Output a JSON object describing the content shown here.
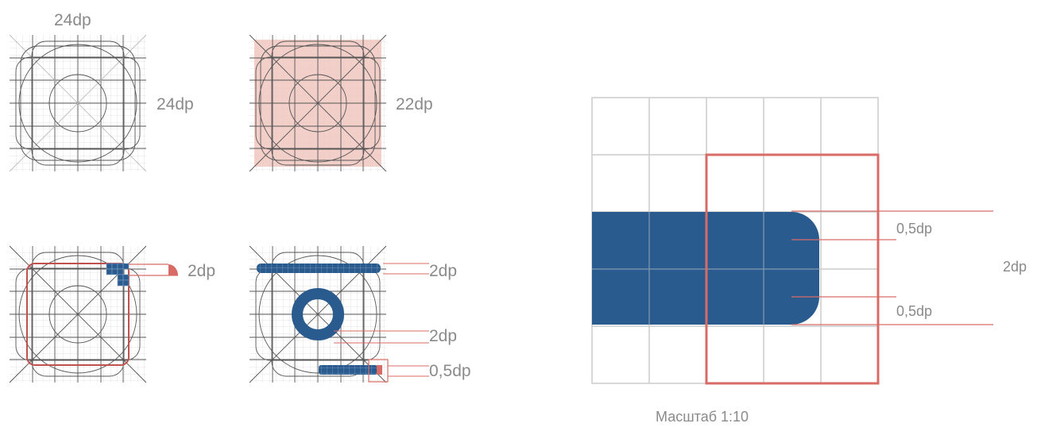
{
  "colors": {
    "accent_red": "#d96b66",
    "keyline_red": "#c0504d",
    "pink_fill": "#f0c7bf",
    "blue": "#2a5b8f",
    "grid_light": "#dcdcdc",
    "grid_dark": "#666666",
    "label": "#8a8a8a"
  },
  "panel_top_left": {
    "top_label": "24dp",
    "side_label": "24dp"
  },
  "panel_top_right": {
    "side_label": "22dp"
  },
  "panel_bottom_left": {
    "label": "2dp"
  },
  "panel_bottom_right": {
    "labels": [
      "2dp",
      "2dp",
      "0,5dp"
    ]
  },
  "zoom": {
    "label_upper": "0,5dp",
    "label_lower": "0,5dp",
    "label_total": "2dp",
    "caption": "Масштаб 1:10"
  }
}
